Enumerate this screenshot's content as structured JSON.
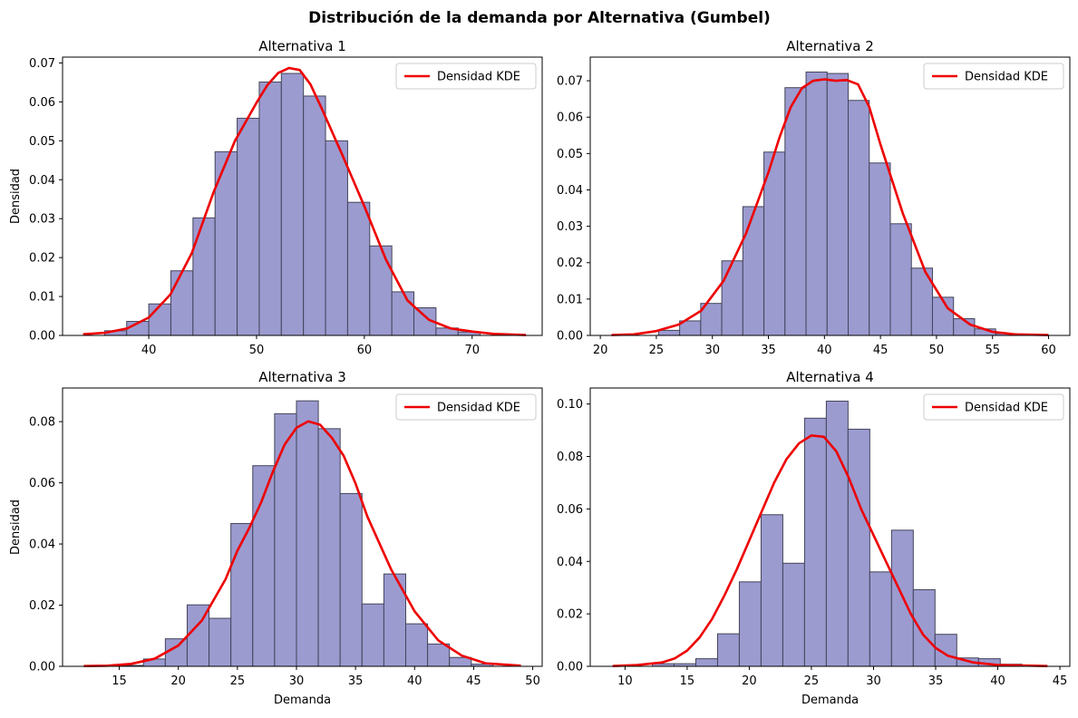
{
  "figure": {
    "suptitle": "Distribución de la demanda por Alternativa (Gumbel)"
  },
  "chart_data": [
    {
      "type": "bar",
      "title": "Alternativa 1",
      "xlabel": "",
      "ylabel": "Densidad",
      "legend": {
        "label": "Densidad KDE",
        "color": "#ee0000",
        "placement": "top-right"
      },
      "bar_color": "#9b9bd0",
      "xlim": [
        32,
        76.5
      ],
      "ylim": [
        0,
        0.0715
      ],
      "xticks": [
        40,
        50,
        60,
        70
      ],
      "yticks": [
        0.0,
        0.01,
        0.02,
        0.03,
        0.04,
        0.05,
        0.06,
        0.07
      ],
      "ytick_format": 2,
      "bin_start": 35.9,
      "bin_width": 2.05,
      "values": [
        0.0012,
        0.0036,
        0.0081,
        0.0166,
        0.0302,
        0.0472,
        0.0558,
        0.0651,
        0.0673,
        0.0615,
        0.05,
        0.0342,
        0.023,
        0.0112,
        0.0071,
        0.0019,
        0.0009
      ],
      "kde": {
        "x": [
          33.9,
          36,
          38,
          40,
          42,
          44,
          46,
          48,
          50,
          51,
          52,
          53,
          54,
          55,
          56,
          58,
          60,
          62,
          64,
          66,
          68,
          70,
          72,
          75
        ],
        "y": [
          0.0003,
          0.0007,
          0.0018,
          0.0046,
          0.0105,
          0.0212,
          0.0367,
          0.05,
          0.0598,
          0.0643,
          0.0674,
          0.0687,
          0.0682,
          0.0645,
          0.0586,
          0.0461,
          0.0332,
          0.0195,
          0.009,
          0.004,
          0.0018,
          0.001,
          0.0004,
          0.0001
        ]
      }
    },
    {
      "type": "bar",
      "title": "Alternativa 2",
      "xlabel": "",
      "ylabel": "",
      "legend": {
        "label": "Densidad KDE",
        "color": "#ee0000",
        "placement": "top-right"
      },
      "bar_color": "#9b9bd0",
      "xlim": [
        19.1,
        61.9
      ],
      "ylim": [
        0,
        0.0765
      ],
      "xticks": [
        20,
        25,
        30,
        35,
        40,
        45,
        50,
        55,
        60
      ],
      "yticks": [
        0.0,
        0.01,
        0.02,
        0.03,
        0.04,
        0.05,
        0.06,
        0.07
      ],
      "ytick_format": 2,
      "bin_start": 25.2,
      "bin_width": 1.88,
      "values": [
        0.0014,
        0.004,
        0.0088,
        0.0205,
        0.0354,
        0.0504,
        0.0681,
        0.0724,
        0.072,
        0.0646,
        0.0474,
        0.0307,
        0.0185,
        0.0105,
        0.0046,
        0.0018,
        0.0005
      ],
      "kde": {
        "x": [
          21,
          23,
          25,
          27,
          29,
          31,
          33,
          35,
          36,
          37,
          38,
          39,
          40,
          41,
          42,
          43,
          44,
          45,
          47,
          49,
          51,
          53,
          55,
          57,
          60
        ],
        "y": [
          0.0001,
          0.0003,
          0.0012,
          0.003,
          0.0068,
          0.015,
          0.028,
          0.0448,
          0.0545,
          0.0628,
          0.068,
          0.07,
          0.0704,
          0.07,
          0.0702,
          0.069,
          0.0628,
          0.0525,
          0.0335,
          0.0175,
          0.0075,
          0.003,
          0.001,
          0.0003,
          0.0001
        ]
      }
    },
    {
      "type": "bar",
      "title": "Alternativa 3",
      "xlabel": "Demanda",
      "ylabel": "Densidad",
      "legend": {
        "label": "Densidad KDE",
        "color": "#ee0000",
        "placement": "top-right"
      },
      "bar_color": "#9b9bd0",
      "xlim": [
        10.2,
        50.8
      ],
      "ylim": [
        0,
        0.091
      ],
      "xticks": [
        15,
        20,
        25,
        30,
        35,
        40,
        45,
        50
      ],
      "yticks": [
        0.0,
        0.02,
        0.04,
        0.06,
        0.08
      ],
      "ytick_format": 2,
      "bin_start": 15.2,
      "bin_width": 1.85,
      "values": [
        0.0003,
        0.0024,
        0.009,
        0.0201,
        0.0157,
        0.0467,
        0.0656,
        0.0826,
        0.0868,
        0.0777,
        0.0565,
        0.0204,
        0.0302,
        0.0139,
        0.0073,
        0.0029,
        0.0007
      ],
      "kde": {
        "x": [
          12,
          14,
          16,
          18,
          20,
          22,
          24,
          25,
          26,
          27,
          28,
          29,
          30,
          31,
          32,
          33,
          34,
          35,
          36,
          38,
          40,
          42,
          44,
          46,
          49
        ],
        "y": [
          0.0001,
          0.0002,
          0.0008,
          0.0025,
          0.0068,
          0.015,
          0.0285,
          0.0378,
          0.0452,
          0.0535,
          0.0636,
          0.0725,
          0.078,
          0.0801,
          0.079,
          0.0747,
          0.0688,
          0.0598,
          0.049,
          0.0318,
          0.018,
          0.0085,
          0.0035,
          0.001,
          0.0002
        ]
      }
    },
    {
      "type": "bar",
      "title": "Alternativa 4",
      "xlabel": "Demanda",
      "ylabel": "",
      "legend": {
        "label": "Densidad KDE",
        "color": "#ee0000",
        "placement": "top-right"
      },
      "bar_color": "#9b9bd0",
      "xlim": [
        7.2,
        45.8
      ],
      "ylim": [
        0,
        0.1061
      ],
      "xticks": [
        10,
        15,
        20,
        25,
        30,
        35,
        40,
        45
      ],
      "yticks": [
        0.0,
        0.02,
        0.04,
        0.06,
        0.08,
        0.1
      ],
      "ytick_format": 2,
      "bin_start": 12.2,
      "bin_width": 1.75,
      "values": [
        0.001,
        0.001,
        0.0029,
        0.0124,
        0.0322,
        0.0578,
        0.0393,
        0.0946,
        0.1011,
        0.0904,
        0.036,
        0.0519,
        0.0292,
        0.0122,
        0.0032,
        0.0029,
        0.0008
      ],
      "kde": {
        "x": [
          9,
          11,
          13,
          14,
          15,
          16,
          17,
          18,
          19,
          20,
          21,
          22,
          23,
          24,
          25,
          26,
          27,
          28,
          29,
          30,
          31,
          32,
          33,
          34,
          35,
          36,
          38,
          40,
          44
        ],
        "y": [
          0.0001,
          0.0005,
          0.0015,
          0.003,
          0.006,
          0.011,
          0.018,
          0.027,
          0.037,
          0.048,
          0.059,
          0.07,
          0.079,
          0.085,
          0.088,
          0.0875,
          0.082,
          0.072,
          0.06,
          0.05,
          0.04,
          0.03,
          0.02,
          0.012,
          0.007,
          0.004,
          0.0015,
          0.0005,
          0.0001
        ]
      }
    }
  ]
}
